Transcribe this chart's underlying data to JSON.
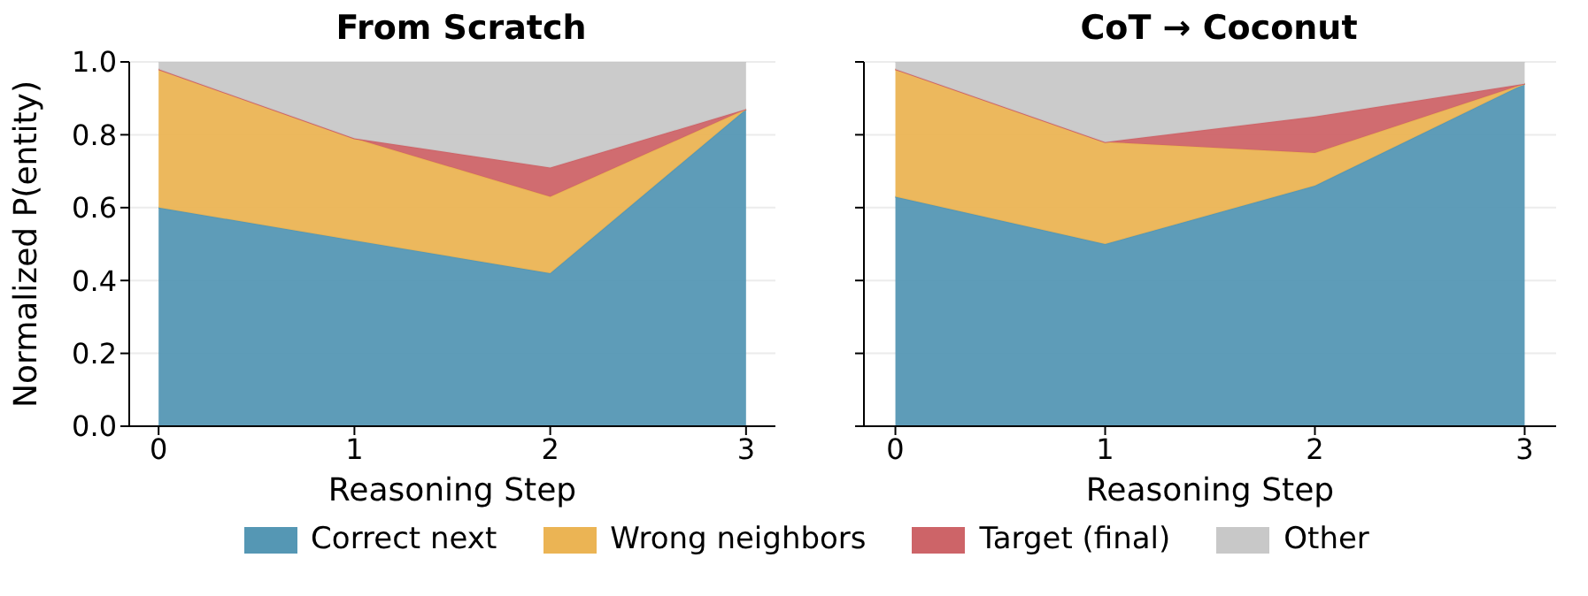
{
  "chart_data": [
    {
      "type": "area",
      "title": "From Scratch",
      "xlabel": "Reasoning Step",
      "ylabel": "Normalized P(entity)",
      "x": [
        0,
        1,
        2,
        3
      ],
      "stacked": true,
      "xlim": [
        -0.15,
        3.15
      ],
      "xticks": [
        0,
        1,
        2,
        3
      ],
      "ylim": [
        0,
        1
      ],
      "yticks": [
        {
          "value": 0,
          "label": "0.0"
        },
        0.2,
        0.4,
        0.6,
        0.8,
        {
          "value": 1,
          "label": "1.0"
        }
      ],
      "grid": "y",
      "legend": "bottom",
      "series": [
        {
          "name": "Correct next",
          "color": "#5597b4",
          "values": [
            0.6,
            0.51,
            0.42,
            0.87
          ]
        },
        {
          "name": "Wrong neighbors",
          "color": "#ebb454",
          "values": [
            0.38,
            0.28,
            0.21,
            0
          ]
        },
        {
          "name": "Target (final)",
          "color": "#cd6468",
          "values": [
            0,
            0,
            0.08,
            0
          ]
        },
        {
          "name": "Other",
          "color": "#c8c8c8",
          "values": [
            0.02,
            0.21,
            0.29,
            0.13
          ]
        }
      ]
    },
    {
      "type": "area",
      "title": "CoT → Coconut",
      "xlabel": "Reasoning Step",
      "x": [
        0,
        1,
        2,
        3
      ],
      "stacked": true,
      "xlim": [
        -0.15,
        3.15
      ],
      "xticks": [
        0,
        1,
        2,
        3
      ],
      "ylim": [
        0,
        1
      ],
      "yticks": [
        0,
        0.2,
        0.4,
        0.6,
        0.8,
        1
      ],
      "grid": "y",
      "legend": "bottom",
      "tick_labels": "x",
      "series": [
        {
          "name": "Correct next",
          "color": "#5597b4",
          "values": [
            0.63,
            0.5,
            0.66,
            0.94
          ]
        },
        {
          "name": "Wrong neighbors",
          "color": "#ebb454",
          "values": [
            0.35,
            0.28,
            0.09,
            0
          ]
        },
        {
          "name": "Target (final)",
          "color": "#cd6468",
          "values": [
            0,
            0,
            0.1,
            0
          ]
        },
        {
          "name": "Other",
          "color": "#c8c8c8",
          "values": [
            0.02,
            0.22,
            0.15,
            0.06
          ]
        }
      ]
    }
  ]
}
